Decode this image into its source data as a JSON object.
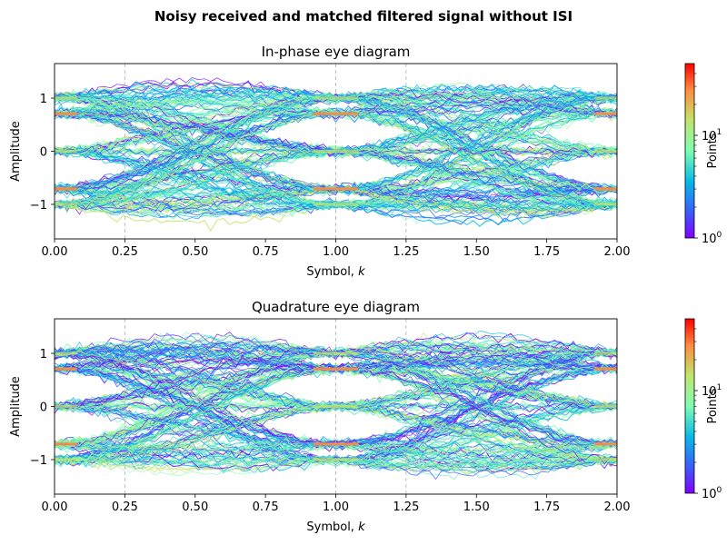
{
  "figure": {
    "suptitle": "Noisy received and matched filtered signal without ISI"
  },
  "chart_data": [
    {
      "type": "heatmap",
      "title": "In-phase eye diagram",
      "xlabel": "Symbol, k",
      "ylabel": "Amplitude",
      "xlim": [
        0.0,
        2.0
      ],
      "ylim": [
        -1.65,
        1.65
      ],
      "xticks": [
        0.0,
        0.25,
        0.5,
        0.75,
        1.0,
        1.25,
        1.5,
        1.75,
        2.0
      ],
      "xtick_labels": [
        "0.00",
        "0.25",
        "0.50",
        "0.75",
        "1.00",
        "1.25",
        "1.50",
        "1.75",
        "2.00"
      ],
      "yticks": [
        -1,
        0,
        1
      ],
      "ytick_labels": [
        "−1",
        "0",
        "1"
      ],
      "symbol_levels": [
        -1.0,
        -0.7071,
        0.0,
        0.7071,
        1.0
      ],
      "vertical_gridlines": [
        0.25,
        1.0,
        1.25
      ],
      "colorbar": {
        "label": "Points",
        "scale": "log",
        "min": 1,
        "max": 50,
        "tick_labels": [
          "10^0",
          "10^1"
        ],
        "tick_values": [
          1,
          10
        ],
        "colormap": "rainbow"
      }
    },
    {
      "type": "heatmap",
      "title": "Quadrature eye diagram",
      "xlabel": "Symbol, k",
      "ylabel": "Amplitude",
      "xlim": [
        0.0,
        2.0
      ],
      "ylim": [
        -1.65,
        1.65
      ],
      "xticks": [
        0.0,
        0.25,
        0.5,
        0.75,
        1.0,
        1.25,
        1.5,
        1.75,
        2.0
      ],
      "xtick_labels": [
        "0.00",
        "0.25",
        "0.50",
        "0.75",
        "1.00",
        "1.25",
        "1.50",
        "1.75",
        "2.00"
      ],
      "yticks": [
        -1,
        0,
        1
      ],
      "ytick_labels": [
        "−1",
        "0",
        "1"
      ],
      "symbol_levels": [
        -1.0,
        -0.7071,
        0.0,
        0.7071,
        1.0
      ],
      "vertical_gridlines": [
        0.25,
        1.0,
        1.25
      ],
      "colorbar": {
        "label": "Points",
        "scale": "log",
        "min": 1,
        "max": 50,
        "tick_labels": [
          "10^0",
          "10^1"
        ],
        "tick_values": [
          1,
          10
        ],
        "colormap": "rainbow"
      }
    }
  ]
}
